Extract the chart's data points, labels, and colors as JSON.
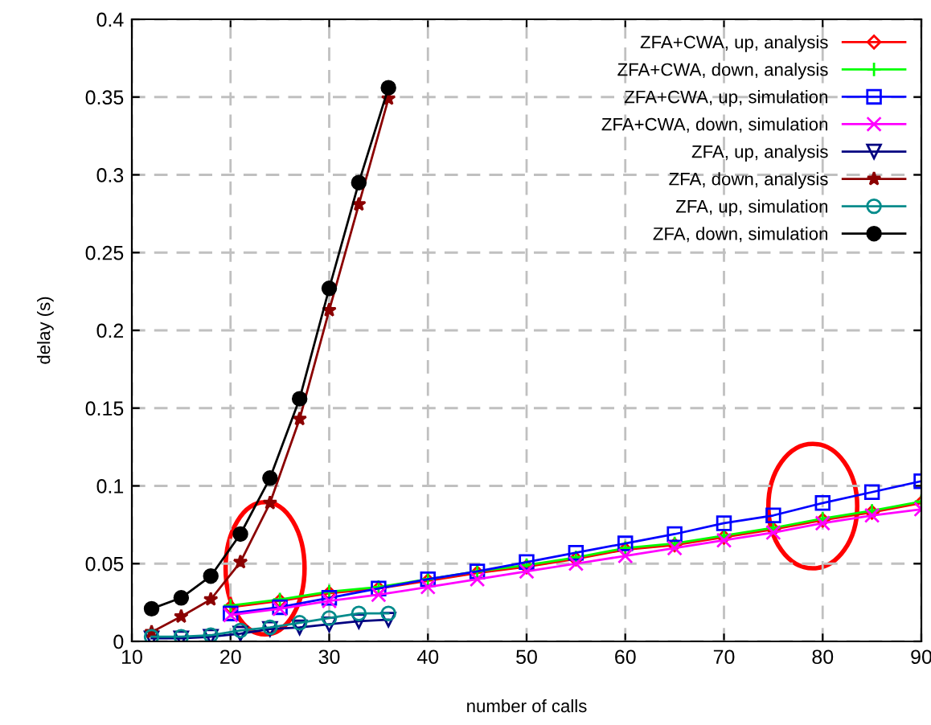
{
  "chart_data": {
    "type": "line",
    "xlabel": "number of calls",
    "ylabel": "delay (s)",
    "xlim": [
      10,
      90
    ],
    "xticks": [
      10,
      20,
      30,
      40,
      50,
      60,
      70,
      80,
      90
    ],
    "ylim": [
      0,
      0.4
    ],
    "yticks": [
      0,
      0.05,
      0.1,
      0.15,
      0.2,
      0.25,
      0.3,
      0.35,
      0.4
    ],
    "grid": true,
    "legend": "top right",
    "line_style": "solid",
    "series": [
      {
        "name": "ZFA+CWA, up, analysis",
        "color": "#ff0000",
        "marker": "diamond",
        "x": [
          20,
          25,
          30,
          35,
          40,
          45,
          50,
          55,
          60,
          65,
          70,
          75,
          80,
          85,
          90
        ],
        "values": [
          0.022,
          0.026,
          0.031,
          0.034,
          0.039,
          0.044,
          0.048,
          0.053,
          0.059,
          0.062,
          0.067,
          0.072,
          0.078,
          0.083,
          0.089
        ]
      },
      {
        "name": "ZFA+CWA, down, analysis",
        "color": "#00ff00",
        "marker": "plus",
        "x": [
          20,
          25,
          30,
          35,
          40,
          45,
          50,
          55,
          60,
          65,
          70,
          75,
          80,
          85,
          90
        ],
        "values": [
          0.023,
          0.027,
          0.032,
          0.035,
          0.04,
          0.045,
          0.049,
          0.054,
          0.06,
          0.063,
          0.068,
          0.073,
          0.079,
          0.084,
          0.09
        ]
      },
      {
        "name": "ZFA+CWA, up, simulation",
        "color": "#0000ff",
        "marker": "square",
        "x": [
          20,
          25,
          30,
          35,
          40,
          45,
          50,
          55,
          60,
          65,
          70,
          75,
          80,
          85,
          90
        ],
        "values": [
          0.018,
          0.022,
          0.028,
          0.034,
          0.04,
          0.045,
          0.051,
          0.057,
          0.063,
          0.069,
          0.076,
          0.081,
          0.089,
          0.096,
          0.103
        ]
      },
      {
        "name": "ZFA+CWA, down, simulation",
        "color": "#ff00ff",
        "marker": "cross",
        "x": [
          20,
          25,
          30,
          35,
          40,
          45,
          50,
          55,
          60,
          65,
          70,
          75,
          80,
          85,
          90
        ],
        "values": [
          0.017,
          0.021,
          0.026,
          0.03,
          0.035,
          0.04,
          0.045,
          0.05,
          0.055,
          0.06,
          0.065,
          0.07,
          0.076,
          0.081,
          0.085
        ]
      },
      {
        "name": "ZFA, up, analysis",
        "color": "#000080",
        "marker": "triangle",
        "x": [
          12,
          15,
          18,
          21,
          24,
          27,
          30,
          33,
          36
        ],
        "values": [
          0.002,
          0.002,
          0.003,
          0.005,
          0.008,
          0.009,
          0.011,
          0.013,
          0.014
        ]
      },
      {
        "name": "ZFA, down, analysis",
        "color": "#8b0000",
        "marker": "star",
        "x": [
          12,
          15,
          18,
          21,
          24,
          27,
          30,
          33,
          36
        ],
        "values": [
          0.006,
          0.016,
          0.027,
          0.051,
          0.089,
          0.143,
          0.213,
          0.281,
          0.349
        ]
      },
      {
        "name": "ZFA, up, simulation",
        "color": "#008b8b",
        "marker": "circle",
        "x": [
          12,
          15,
          18,
          21,
          24,
          27,
          30,
          33,
          36
        ],
        "values": [
          0.003,
          0.003,
          0.004,
          0.007,
          0.009,
          0.012,
          0.015,
          0.018,
          0.018
        ]
      },
      {
        "name": "ZFA, down, simulation",
        "color": "#000000",
        "marker": "circle",
        "x": [
          12,
          15,
          18,
          21,
          24,
          27,
          30,
          33,
          36
        ],
        "values": [
          0.021,
          0.028,
          0.042,
          0.069,
          0.105,
          0.156,
          0.227,
          0.295,
          0.356
        ]
      }
    ]
  }
}
